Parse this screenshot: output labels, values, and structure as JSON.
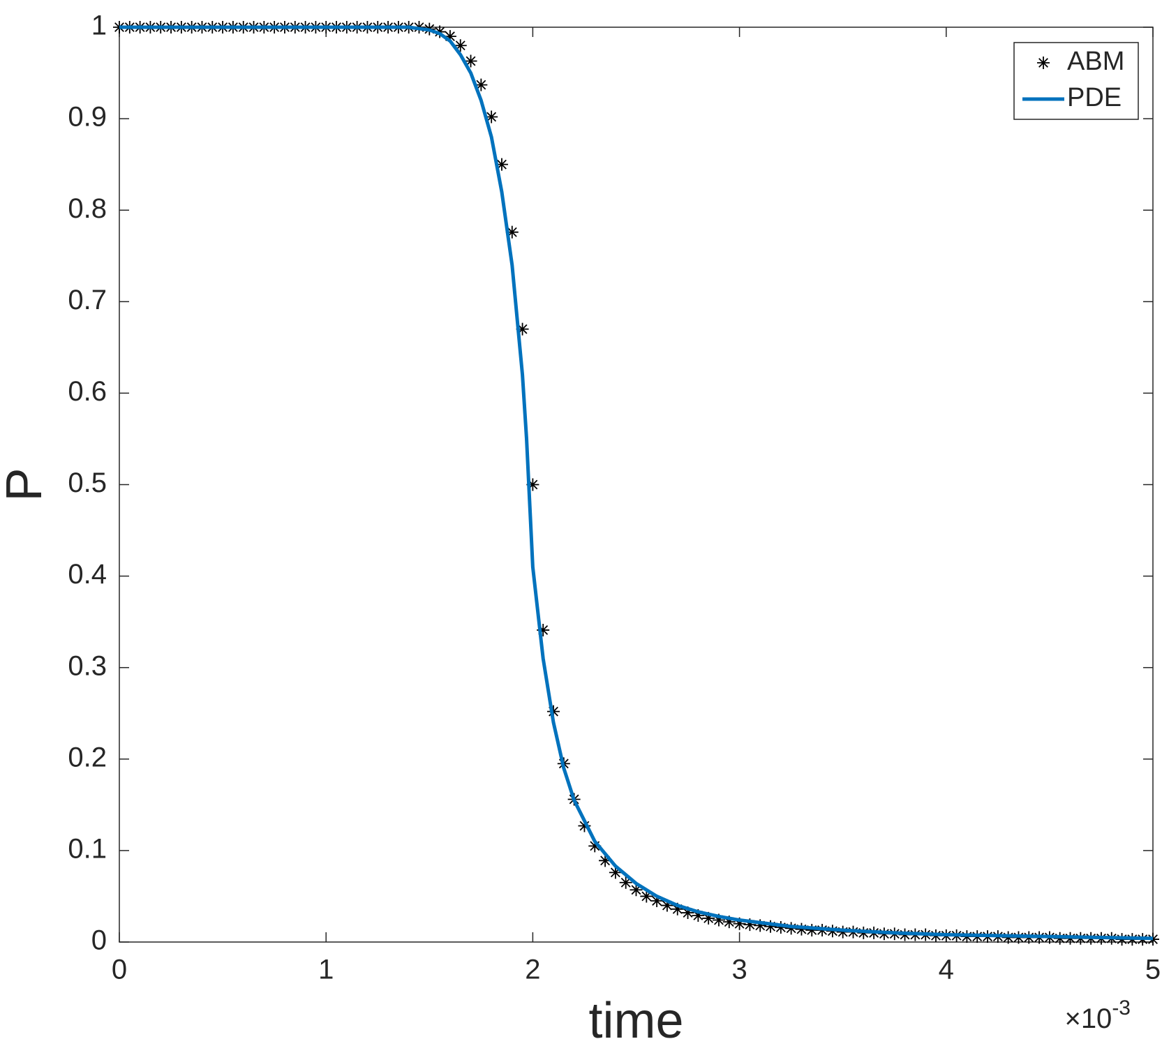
{
  "chart_data": {
    "type": "line",
    "xlabel": "time",
    "ylabel": "P",
    "x_multiplier": {
      "base": "×10",
      "exponent": "-3"
    },
    "xlim": [
      0,
      5
    ],
    "xticks": [
      0,
      1,
      2,
      3,
      4,
      5
    ],
    "ylim": [
      0,
      1
    ],
    "yticks": [
      0,
      0.1,
      0.2,
      0.3,
      0.4,
      0.5,
      0.6,
      0.7,
      0.8,
      0.9,
      1
    ],
    "legend": "top-right",
    "box": true,
    "series": [
      {
        "name": "ABM",
        "color": "#000000",
        "marker": "asterisk",
        "x": [
          0,
          0.05,
          0.1,
          0.15,
          0.2,
          0.25,
          0.3,
          0.35,
          0.4,
          0.45,
          0.5,
          0.55,
          0.6,
          0.65,
          0.7,
          0.75,
          0.8,
          0.85,
          0.9,
          0.95,
          1,
          1.05,
          1.1,
          1.15,
          1.2,
          1.25,
          1.3,
          1.35,
          1.4,
          1.45,
          1.5,
          1.55,
          1.6,
          1.65,
          1.7,
          1.75,
          1.8,
          1.85,
          1.9,
          1.95,
          2,
          2.05,
          2.1,
          2.15,
          2.2,
          2.25,
          2.3,
          2.35,
          2.4,
          2.45,
          2.5,
          2.55,
          2.6,
          2.65,
          2.7,
          2.75,
          2.8,
          2.85,
          2.9,
          2.95,
          3,
          3.05,
          3.1,
          3.15,
          3.2,
          3.25,
          3.3,
          3.35,
          3.4,
          3.45,
          3.5,
          3.55,
          3.6,
          3.65,
          3.7,
          3.75,
          3.8,
          3.85,
          3.9,
          3.95,
          4,
          4.05,
          4.1,
          4.15,
          4.2,
          4.25,
          4.3,
          4.35,
          4.4,
          4.45,
          4.5,
          4.55,
          4.6,
          4.65,
          4.7,
          4.75,
          4.8,
          4.85,
          4.9,
          4.95,
          5
        ],
        "values": [
          1,
          1,
          1,
          1,
          1,
          1,
          1,
          1,
          1,
          1,
          1,
          1,
          1,
          1,
          1,
          1,
          1,
          1,
          1,
          1,
          1,
          1,
          1,
          1,
          1,
          1,
          1,
          1,
          1,
          1,
          0.998,
          0.995,
          0.99,
          0.98,
          0.963,
          0.937,
          0.902,
          0.85,
          0.776,
          0.67,
          0.5,
          0.341,
          0.252,
          0.195,
          0.156,
          0.127,
          0.105,
          0.089,
          0.076,
          0.065,
          0.057,
          0.05,
          0.045,
          0.04,
          0.036,
          0.032,
          0.029,
          0.026,
          0.024,
          0.022,
          0.02,
          0.019,
          0.018,
          0.017,
          0.016,
          0.015,
          0.014,
          0.013,
          0.013,
          0.012,
          0.011,
          0.011,
          0.01,
          0.01,
          0.009,
          0.009,
          0.008,
          0.008,
          0.008,
          0.007,
          0.007,
          0.007,
          0.006,
          0.006,
          0.006,
          0.006,
          0.005,
          0.005,
          0.005,
          0.005,
          0.005,
          0.004,
          0.004,
          0.004,
          0.004,
          0.004,
          0.004,
          0.003,
          0.003,
          0.003,
          0.003
        ]
      },
      {
        "name": "PDE",
        "color": "#0072bd",
        "marker": "line",
        "x": [
          0,
          0.5,
          1,
          1.4,
          1.5,
          1.55,
          1.6,
          1.65,
          1.7,
          1.75,
          1.8,
          1.85,
          1.9,
          1.95,
          1.97,
          2,
          2.05,
          2.1,
          2.15,
          2.2,
          2.3,
          2.4,
          2.5,
          2.6,
          2.7,
          2.8,
          2.9,
          3,
          3.25,
          3.5,
          3.75,
          4,
          4.5,
          5
        ],
        "values": [
          1,
          1,
          1,
          1,
          0.997,
          0.993,
          0.985,
          0.97,
          0.95,
          0.92,
          0.88,
          0.82,
          0.74,
          0.62,
          0.55,
          0.41,
          0.31,
          0.24,
          0.19,
          0.155,
          0.11,
          0.083,
          0.064,
          0.05,
          0.04,
          0.033,
          0.028,
          0.024,
          0.017,
          0.013,
          0.01,
          0.008,
          0.006,
          0.004
        ]
      }
    ]
  }
}
